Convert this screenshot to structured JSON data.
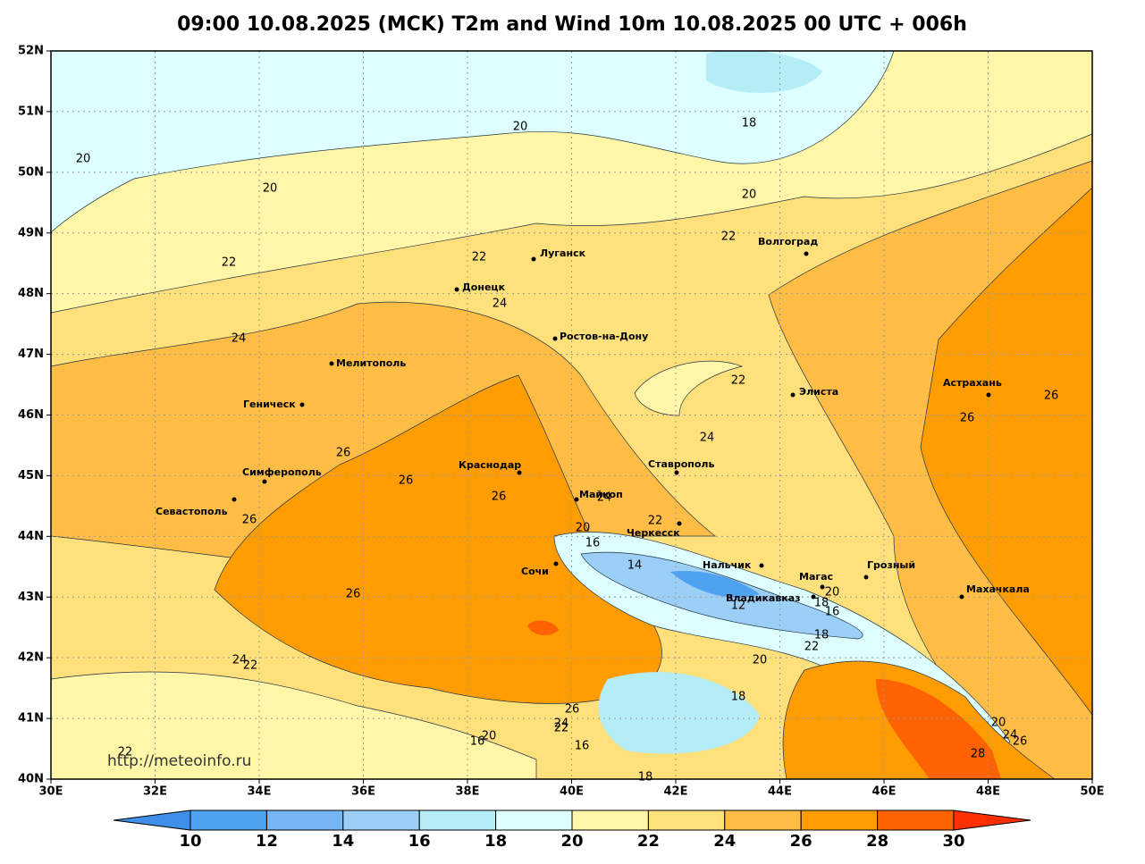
{
  "title": "09:00 10.08.2025 (MCK) T2m and Wind 10m 10.08.2025 00 UTC + 006h",
  "watermark": "http://meteoinfo.ru",
  "lon_ticks": [
    {
      "value": 30,
      "label": "30E"
    },
    {
      "value": 32,
      "label": "32E"
    },
    {
      "value": 34,
      "label": "34E"
    },
    {
      "value": 36,
      "label": "36E"
    },
    {
      "value": 38,
      "label": "38E"
    },
    {
      "value": 40,
      "label": "40E"
    },
    {
      "value": 42,
      "label": "42E"
    },
    {
      "value": 44,
      "label": "44E"
    },
    {
      "value": 46,
      "label": "46E"
    },
    {
      "value": 48,
      "label": "48E"
    },
    {
      "value": 50,
      "label": "50E"
    }
  ],
  "lat_ticks": [
    {
      "value": 40,
      "label": "40N"
    },
    {
      "value": 41,
      "label": "41N"
    },
    {
      "value": 42,
      "label": "42N"
    },
    {
      "value": 43,
      "label": "43N"
    },
    {
      "value": 44,
      "label": "44N"
    },
    {
      "value": 45,
      "label": "45N"
    },
    {
      "value": 46,
      "label": "46N"
    },
    {
      "value": 47,
      "label": "47N"
    },
    {
      "value": 48,
      "label": "48N"
    },
    {
      "value": 49,
      "label": "49N"
    },
    {
      "value": 50,
      "label": "50N"
    },
    {
      "value": 51,
      "label": "51N"
    },
    {
      "value": 52,
      "label": "52N"
    }
  ],
  "cities": [
    "Луганск",
    "Донецк",
    "Ростов-на-Дону",
    "Волгоград",
    "Мелитополь",
    "Геническ",
    "Элиста",
    "Астрахань",
    "Симферополь",
    "Севастополь",
    "Краснодар",
    "Майкоп",
    "Ставрополь",
    "Черкесск",
    "Сочи",
    "Нальчик",
    "Магас",
    "Грозный",
    "Владикавказ",
    "Махачкала"
  ],
  "contour_labels": [
    20,
    18,
    20,
    20,
    20,
    22,
    22,
    22,
    24,
    24,
    22,
    26,
    26,
    24,
    26,
    26,
    26,
    26,
    24,
    22,
    20,
    16,
    14,
    26,
    20,
    12,
    18,
    16,
    18,
    22,
    24,
    22,
    20,
    18,
    26,
    24,
    22,
    20,
    24,
    26,
    20,
    16,
    16,
    28,
    22,
    18
  ],
  "colorbar": {
    "ticks": [
      10,
      12,
      14,
      16,
      18,
      20,
      22,
      24,
      26,
      28,
      30
    ],
    "colors": [
      "#3f8fe8",
      "#4ea2f0",
      "#74b6f3",
      "#9ccff7",
      "#b5edf7",
      "#ddffff",
      "#fff6a8",
      "#ffe07a",
      "#ffbd45",
      "#ff9c00",
      "#ff6200",
      "#ff3000"
    ]
  }
}
